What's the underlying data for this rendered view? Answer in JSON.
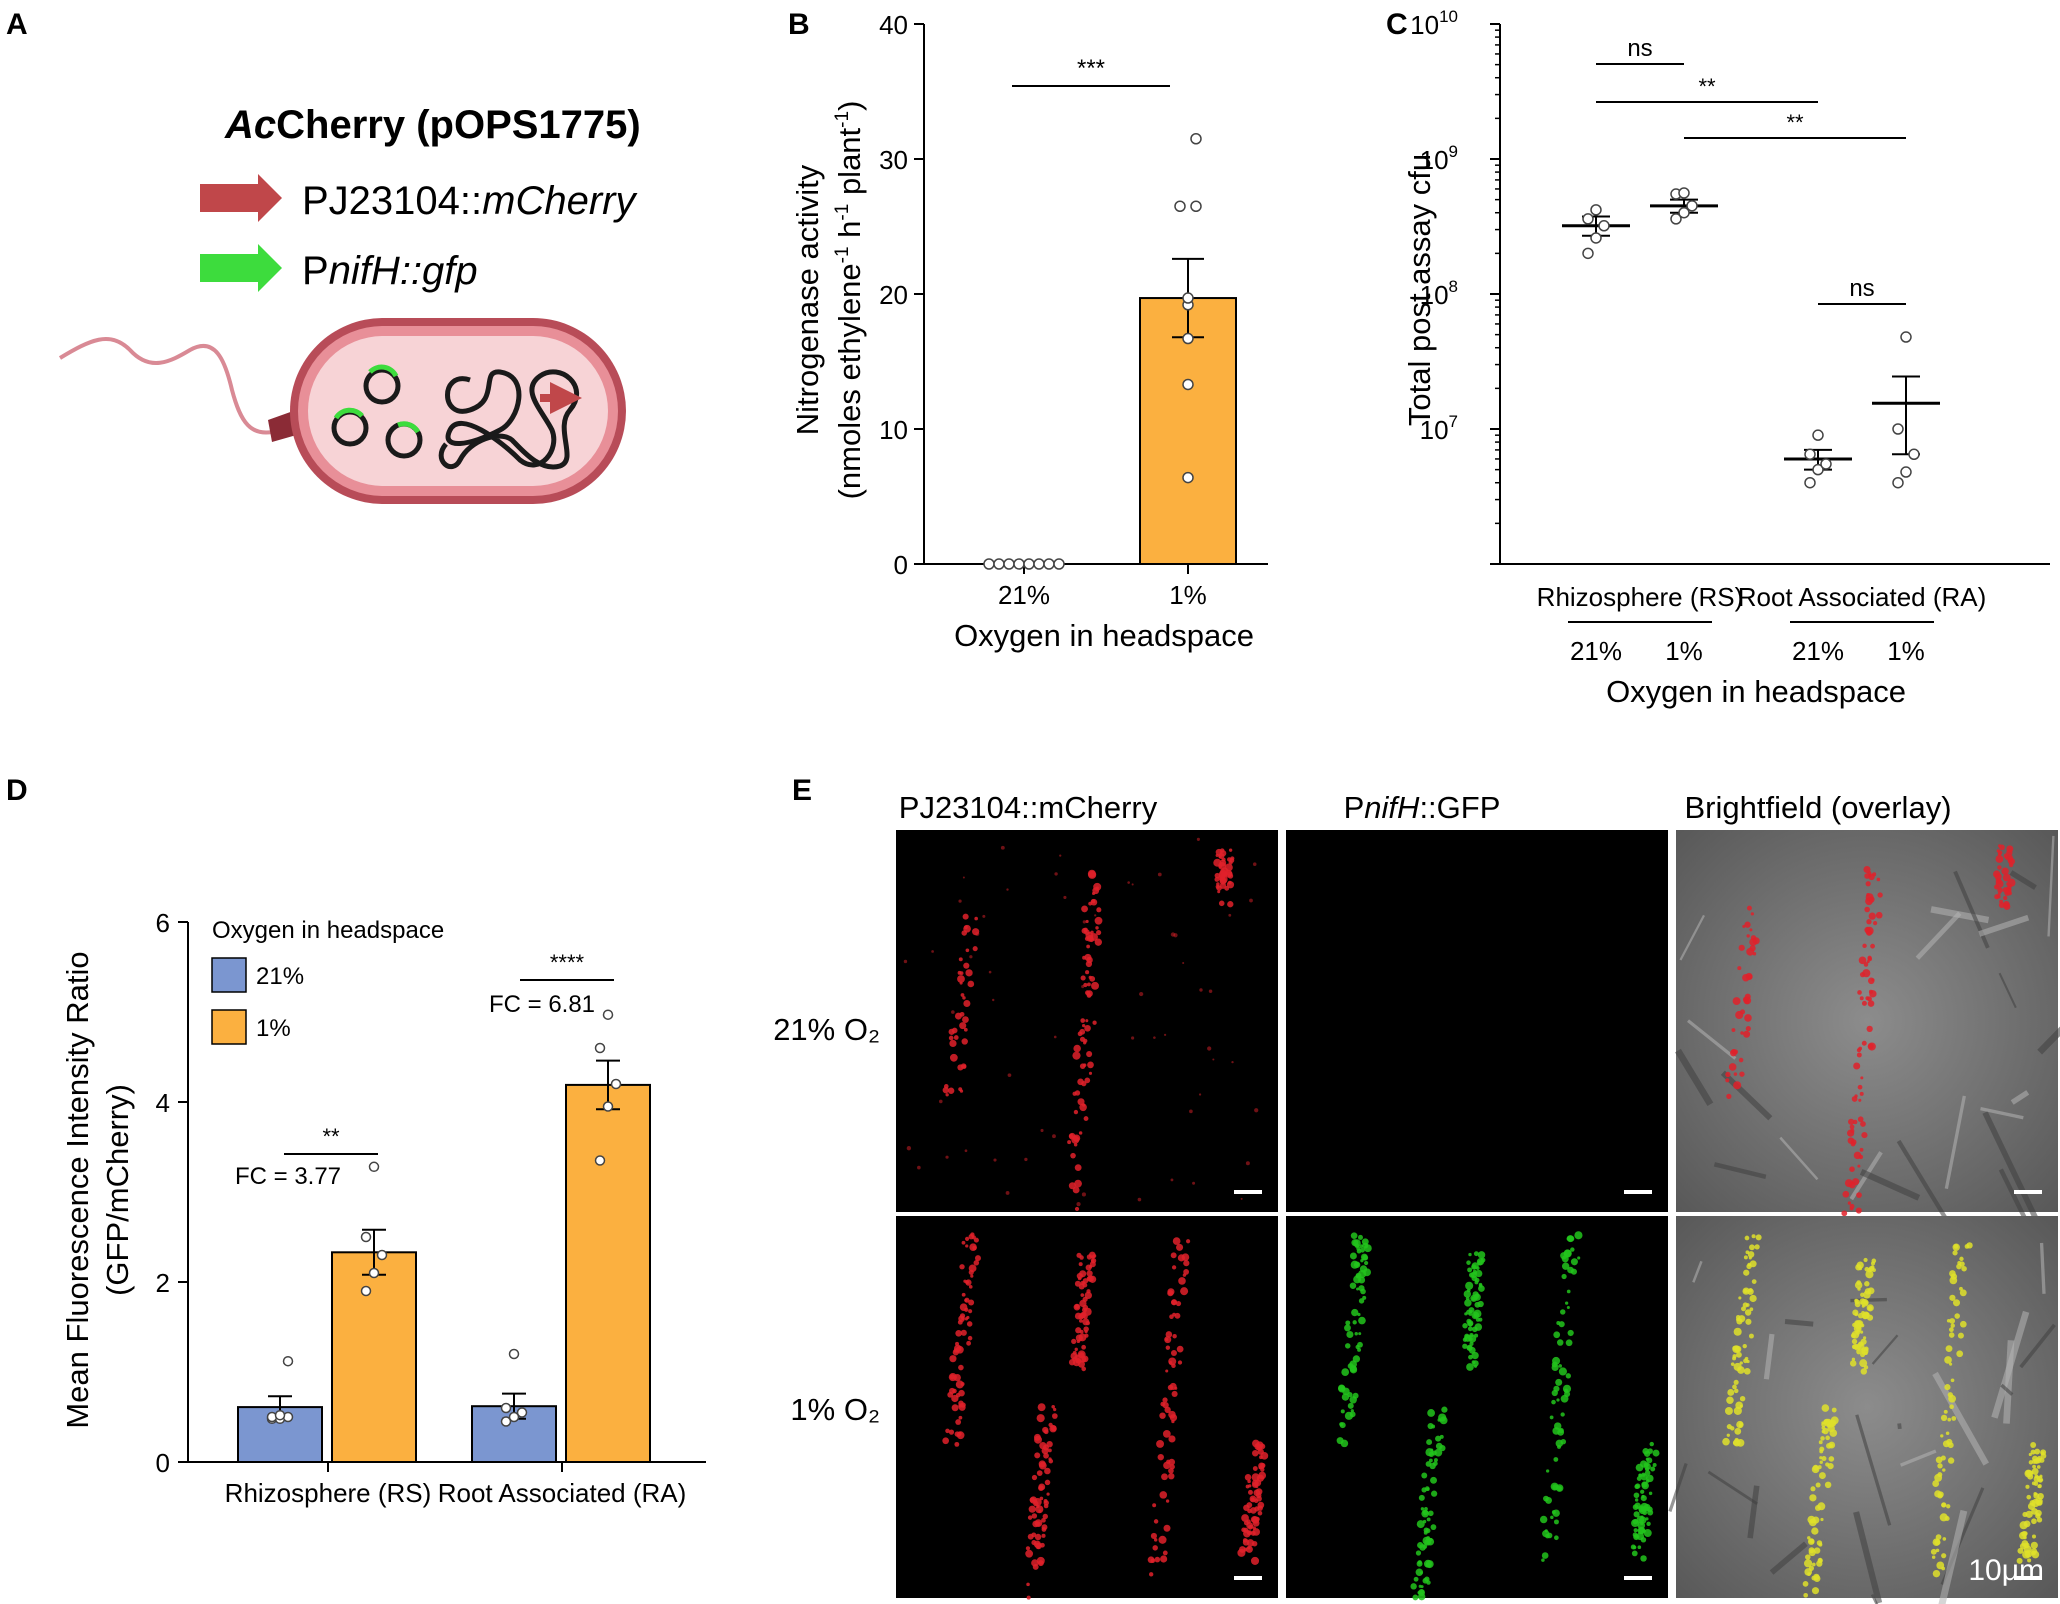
{
  "panel_letters": {
    "a": "A",
    "b": "B",
    "c": "C",
    "d": "D",
    "e": "E"
  },
  "panel_a": {
    "title_italic": "Ac",
    "title_rest": "Cherry (pOPS1775)",
    "line1_plain": "PJ23104::",
    "line1_italic": "mCherry",
    "line2_plain": "P",
    "line2_italic": "nifH::gfp",
    "colors": {
      "red_arrow": "#c0474a",
      "green_arrow": "#3ddc3d",
      "cell_outline": "#a63d45",
      "cell_fill": "#f6cdd0",
      "flagellum": "#d98a95"
    }
  },
  "chart_data": [
    {
      "panel": "B",
      "type": "bar",
      "categories": [
        "21%",
        "1%"
      ],
      "xlabel": "Oxygen in headspace",
      "ylabel_line1": "Nitrogenase activity",
      "ylabel_line2_a": "(nmoles ethylene",
      "ylabel_sup1": "-1",
      "ylabel_line2_b": " h",
      "ylabel_sup2": "-1",
      "ylabel_line2_c": " plant",
      "ylabel_sup3": "-1",
      "ylabel_line2_d": ")",
      "ylim": [
        0,
        40
      ],
      "yticks": [
        "0",
        "10",
        "20",
        "30",
        "40"
      ],
      "means": [
        0,
        19.7
      ],
      "sem": [
        0,
        2.9
      ],
      "points": [
        [
          0,
          0,
          0,
          0,
          0,
          0,
          0,
          0
        ],
        [
          6.4,
          13.3,
          16.7,
          19.2,
          19.7,
          26.5,
          26.5,
          31.5
        ]
      ],
      "bar_color": "#fbb040",
      "significance": "***"
    },
    {
      "panel": "C",
      "type": "scatter",
      "scale": "log",
      "ylabel": "Total post assay cfu",
      "xlabel": "Oxygen in headspace",
      "ylim": [
        1000000,
        10000000000
      ],
      "ytick_base": "10",
      "ytick_exponents": [
        "7",
        "8",
        "9",
        "10"
      ],
      "group_labels": [
        "Rhizosphere (RS)",
        "Root Associated (RA)"
      ],
      "categories": [
        "21%",
        "1%",
        "21%",
        "1%"
      ],
      "means": [
        320000000,
        450000000,
        6000000,
        15500000
      ],
      "sem_low": [
        270000000,
        400000000,
        5000000,
        6500000
      ],
      "sem_high": [
        375000000,
        500000000,
        7000000,
        24500000
      ],
      "points": [
        [
          200000000,
          260000000,
          320000000,
          360000000,
          420000000
        ],
        [
          360000000,
          400000000,
          450000000,
          550000000,
          560000000
        ],
        [
          4000000,
          5000000,
          5500000,
          6500000,
          9000000
        ],
        [
          4000000,
          4800000,
          6500000,
          10000000,
          48000000
        ]
      ],
      "significance": [
        {
          "label": "ns",
          "from": 0,
          "to": 1
        },
        {
          "label": "**",
          "from": 0,
          "to": 2
        },
        {
          "label": "**",
          "from": 1,
          "to": 3
        },
        {
          "label": "ns",
          "from": 2,
          "to": 3
        }
      ]
    },
    {
      "panel": "D",
      "type": "bar",
      "categories": [
        "Rhizosphere (RS)",
        "Root Associated (RA)"
      ],
      "ylabel_line1": "Mean Fluorescence Intensity Ratio",
      "ylabel_line2": "(GFP/mCherry)",
      "ylim": [
        0,
        6
      ],
      "yticks": [
        "0",
        "2",
        "4",
        "6"
      ],
      "legend_title": "Oxygen in headspace",
      "legend_position": "top-left",
      "series": [
        {
          "name": "21%",
          "color": "#7b96d0",
          "values": [
            0.61,
            0.62
          ],
          "sem": [
            0.12,
            0.14
          ],
          "points": [
            [
              0.48,
              0.48,
              0.5,
              0.5,
              0.52,
              1.12
            ],
            [
              0.45,
              0.5,
              0.55,
              0.6,
              1.2
            ]
          ]
        },
        {
          "name": "1%",
          "color": "#fbb040",
          "values": [
            2.33,
            4.19
          ],
          "sem": [
            0.25,
            0.27
          ],
          "points": [
            [
              1.9,
              2.1,
              2.3,
              2.5,
              3.28
            ],
            [
              3.35,
              3.95,
              4.2,
              4.6,
              4.97
            ]
          ]
        }
      ],
      "annotations": [
        {
          "group": 0,
          "stars": "**",
          "fc": "FC = 3.77"
        },
        {
          "group": 1,
          "stars": "****",
          "fc": "FC = 6.81"
        }
      ]
    }
  ],
  "panel_e": {
    "col_headers": {
      "mcherry": "PJ23104::mCherry",
      "gfp_pre": "P",
      "gfp_italic": "nifH",
      "gfp_post": "::GFP",
      "bright": "Brightfield (overlay)"
    },
    "row_labels": [
      "21% O₂",
      "1% O₂"
    ],
    "scale_bar": "10μm",
    "colors": {
      "red": "#e0212a",
      "green": "#22c41c",
      "yellow": "#dfe02a",
      "tissue": "#7d7d7d"
    }
  }
}
